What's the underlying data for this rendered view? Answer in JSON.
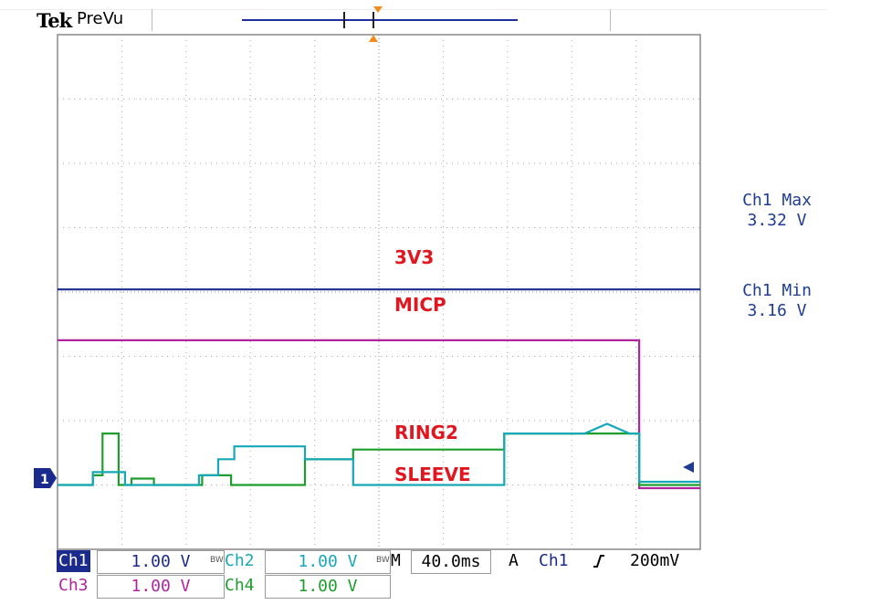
{
  "header": {
    "brand": "Tek",
    "mode": "PreVu"
  },
  "colors": {
    "ch1": "#1b2b8d",
    "ch2": "#17a8b8",
    "ch3": "#b0249f",
    "ch4": "#1d9e2c",
    "label": "#e0171f",
    "trigger": "#f28a1c"
  },
  "waveform_labels": {
    "v3": "3V3",
    "micp": "MICP",
    "ring2": "RING2",
    "sleeve": "SLEEVE"
  },
  "ground_marker": "1",
  "measurements": {
    "max": {
      "title": "Ch1 Max",
      "value": "3.32 V"
    },
    "min": {
      "title": "Ch1 Min",
      "value": "3.16 V"
    }
  },
  "channels": {
    "ch1": {
      "name": "Ch1",
      "scale": "1.00 V"
    },
    "ch2": {
      "name": "Ch2",
      "scale": "1.00 V"
    },
    "ch3": {
      "name": "Ch3",
      "scale": "1.00 V"
    },
    "ch4": {
      "name": "Ch4",
      "scale": "1.00 V"
    }
  },
  "bw_marker": "BW",
  "timebase": {
    "prefix": "M",
    "value": "40.0ms"
  },
  "trigger": {
    "mode": "A",
    "source": "Ch1",
    "slope_icon": "rising-edge-icon",
    "level": "200mV"
  },
  "screen": {
    "divisions_x": 10,
    "divisions_y": 8
  },
  "traces": {
    "ch1": [
      [
        0,
        3.24
      ],
      [
        10,
        3.24
      ]
    ],
    "ch3": [
      [
        0,
        2.45
      ],
      [
        9.05,
        2.45
      ],
      [
        9.05,
        0.15
      ],
      [
        10,
        0.15
      ]
    ],
    "ch4": [
      [
        0,
        0.2
      ],
      [
        0.55,
        0.2
      ],
      [
        0.55,
        0.35
      ],
      [
        0.7,
        0.35
      ],
      [
        0.7,
        1.0
      ],
      [
        0.95,
        1.0
      ],
      [
        0.95,
        0.2
      ],
      [
        1.15,
        0.2
      ],
      [
        1.15,
        0.3
      ],
      [
        1.5,
        0.3
      ],
      [
        1.5,
        0.2
      ],
      [
        2.25,
        0.2
      ],
      [
        2.25,
        0.35
      ],
      [
        2.7,
        0.35
      ],
      [
        2.7,
        0.2
      ],
      [
        3.85,
        0.2
      ],
      [
        3.85,
        0.6
      ],
      [
        4.6,
        0.6
      ],
      [
        4.6,
        0.75
      ],
      [
        6.95,
        0.75
      ],
      [
        6.95,
        1.0
      ],
      [
        9.05,
        1.0
      ],
      [
        9.05,
        0.2
      ],
      [
        10,
        0.2
      ]
    ],
    "ch2": [
      [
        0,
        0.2
      ],
      [
        0.55,
        0.2
      ],
      [
        0.55,
        0.4
      ],
      [
        1.05,
        0.4
      ],
      [
        1.05,
        0.2
      ],
      [
        2.2,
        0.2
      ],
      [
        2.2,
        0.35
      ],
      [
        2.5,
        0.35
      ],
      [
        2.5,
        0.6
      ],
      [
        2.75,
        0.6
      ],
      [
        2.75,
        0.8
      ],
      [
        3.85,
        0.8
      ],
      [
        3.85,
        0.6
      ],
      [
        4.6,
        0.6
      ],
      [
        4.6,
        0.2
      ],
      [
        6.95,
        0.2
      ],
      [
        6.95,
        1.0
      ],
      [
        8.2,
        1.0
      ],
      [
        8.55,
        1.15
      ],
      [
        8.9,
        1.0
      ],
      [
        9.05,
        1.0
      ],
      [
        9.05,
        0.25
      ],
      [
        10,
        0.25
      ]
    ]
  }
}
